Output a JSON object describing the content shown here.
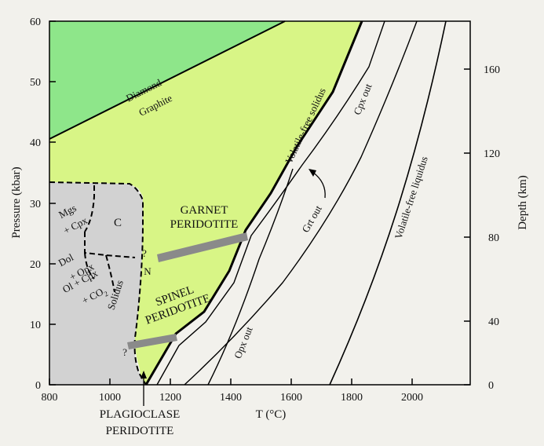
{
  "colors": {
    "background": "#f2f1ec",
    "diamond_field": "#8ee68a",
    "peridotite_field": "#d8f586",
    "carbonate_field": "#d2d2d2",
    "gray_bar": "#8a8a8a",
    "line": "#000000"
  },
  "axes": {
    "x_label": "T (°C)",
    "y_label": "Pressure (kbar)",
    "y2_label": "Depth (km)",
    "x_ticks": [
      "800",
      "1000",
      "1200",
      "1400",
      "1600",
      "1800",
      "2000"
    ],
    "y_ticks": [
      "0",
      "10",
      "20",
      "30",
      "40",
      "50",
      "60"
    ],
    "depth_ticks": [
      "0",
      "40",
      "80",
      "120",
      "160"
    ]
  },
  "labels": {
    "diamond": "Diamond",
    "graphite": "Graphite",
    "garnet_line1": "GARNET",
    "garnet_line2": "PERIDOTITE",
    "spinel_line1": "SPINEL",
    "spinel_line2": "PERIDOTITE",
    "plag_line1": "PLAGIOCLASE",
    "plag_line2": "PERIDOTITE",
    "volatile_free_solidus": "Volatile-free solidus",
    "volatile_free_liquidus": "Volatile-free liquidus",
    "cpx_out": "Cpx out",
    "grt_out": "Grt out",
    "opx_out": "Opx out",
    "solidus": "Solidus",
    "mgs": "Mgs",
    "plus_cpx": "+ Cpx",
    "c": "C",
    "dol": "Dol",
    "plus_opx": "+ Opx",
    "ol_cpx": "Ol + Cpx",
    "co2_plus": "+ CO",
    "co2_sub": "2",
    "n": "N",
    "question1": "?",
    "question2": "?"
  }
}
